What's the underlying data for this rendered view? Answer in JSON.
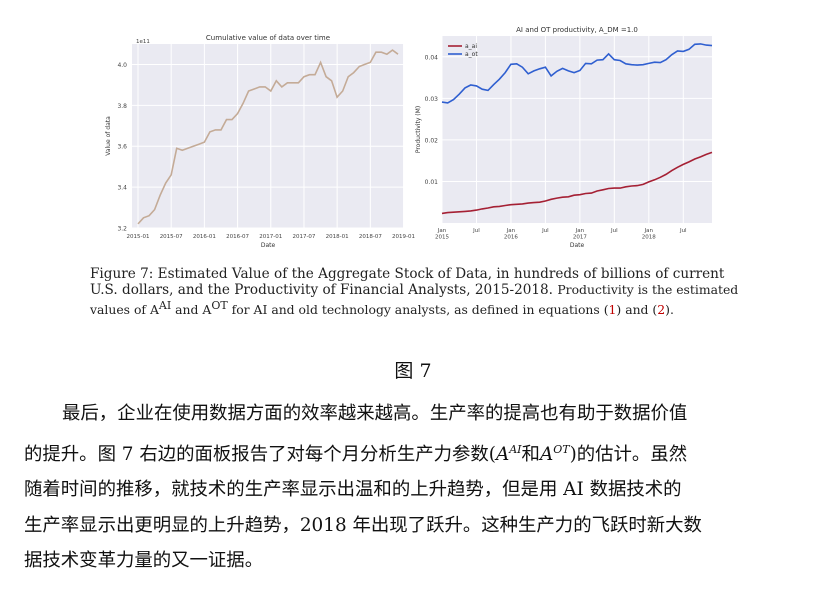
{
  "chart_data": [
    {
      "type": "line",
      "title": "Cumulative value of data over time",
      "xlabel": "Date",
      "ylabel": "Value of data",
      "y_offset_label": "1e11",
      "ylim": [
        3.2,
        4.1
      ],
      "y_ticks": [
        "3.2",
        "3.4",
        "3.6",
        "3.8",
        "4.0"
      ],
      "x_ticks": [
        "2015-01",
        "2015-07",
        "2016-01",
        "2016-07",
        "2017-01",
        "2017-07",
        "2018-01",
        "2018-07",
        "2019-01"
      ],
      "grid": true,
      "color": "#c4ab97",
      "x_month_index": [
        0,
        1,
        2,
        3,
        4,
        5,
        6,
        7,
        8,
        9,
        10,
        11,
        12,
        13,
        14,
        15,
        16,
        17,
        18,
        19,
        20,
        21,
        22,
        23,
        24,
        25,
        26,
        27,
        28,
        29,
        30,
        31,
        32,
        33,
        34,
        35,
        36,
        37,
        38,
        39,
        40,
        41,
        42,
        43,
        44,
        45,
        46,
        47
      ],
      "values": [
        3.22,
        3.25,
        3.26,
        3.29,
        3.36,
        3.42,
        3.46,
        3.59,
        3.58,
        3.59,
        3.6,
        3.61,
        3.62,
        3.67,
        3.68,
        3.68,
        3.73,
        3.73,
        3.76,
        3.81,
        3.87,
        3.88,
        3.89,
        3.89,
        3.87,
        3.92,
        3.89,
        3.91,
        3.91,
        3.91,
        3.94,
        3.95,
        3.95,
        4.01,
        3.94,
        3.92,
        3.84,
        3.87,
        3.94,
        3.96,
        3.99,
        4.0,
        4.01,
        4.06,
        4.06,
        4.05,
        4.07,
        4.05
      ]
    },
    {
      "type": "line",
      "title": "AI and OT productivity, A_DM =1.0",
      "xlabel": "Date",
      "ylabel": "Productivity (M)",
      "ylim": [
        0.0,
        0.045
      ],
      "y_ticks": [
        "0.01",
        "0.02",
        "0.03",
        "0.04"
      ],
      "x_ticks": [
        [
          "Jan",
          "2015"
        ],
        [
          "Jul",
          ""
        ],
        [
          "Jan",
          "2016"
        ],
        [
          "Jul",
          ""
        ],
        [
          "Jan",
          "2017"
        ],
        [
          "Jul",
          ""
        ],
        [
          "Jan",
          "2018"
        ],
        [
          "Jul",
          ""
        ]
      ],
      "grid": true,
      "legend": "top-left",
      "x_month_index": [
        0,
        1,
        2,
        3,
        4,
        5,
        6,
        7,
        8,
        9,
        10,
        11,
        12,
        13,
        14,
        15,
        16,
        17,
        18,
        19,
        20,
        21,
        22,
        23,
        24,
        25,
        26,
        27,
        28,
        29,
        30,
        31,
        32,
        33,
        34,
        35,
        36,
        37,
        38,
        39,
        40,
        41,
        42,
        43,
        44,
        45,
        46,
        47
      ],
      "series": [
        {
          "name": "a_ai",
          "color": "#a52034",
          "values": [
            0.0023,
            0.0025,
            0.0026,
            0.0027,
            0.0028,
            0.0029,
            0.0031,
            0.0034,
            0.0036,
            0.0039,
            0.004,
            0.0042,
            0.0044,
            0.0045,
            0.0046,
            0.0048,
            0.0049,
            0.005,
            0.0053,
            0.0057,
            0.006,
            0.0062,
            0.0063,
            0.0067,
            0.0068,
            0.0071,
            0.0072,
            0.0077,
            0.008,
            0.0083,
            0.0084,
            0.0084,
            0.0087,
            0.0089,
            0.009,
            0.0093,
            0.0099,
            0.0104,
            0.011,
            0.0117,
            0.0126,
            0.0134,
            0.0141,
            0.0147,
            0.0154,
            0.0159,
            0.0165,
            0.017
          ]
        },
        {
          "name": "a_ot",
          "color": "#2f5fd0",
          "values": [
            0.0291,
            0.0289,
            0.0297,
            0.031,
            0.0325,
            0.0332,
            0.033,
            0.0322,
            0.0319,
            0.0333,
            0.0346,
            0.0362,
            0.0382,
            0.0383,
            0.0375,
            0.0359,
            0.0366,
            0.0371,
            0.0375,
            0.0354,
            0.0365,
            0.0372,
            0.0366,
            0.0362,
            0.0367,
            0.0384,
            0.0383,
            0.0392,
            0.0393,
            0.0407,
            0.0393,
            0.0391,
            0.0383,
            0.0381,
            0.038,
            0.0381,
            0.0384,
            0.0387,
            0.0386,
            0.0393,
            0.0405,
            0.0414,
            0.0413,
            0.0418,
            0.043,
            0.0431,
            0.0428,
            0.0427
          ]
        }
      ]
    }
  ],
  "caption": {
    "line1": "Figure 7:  Estimated Value of the Aggregate Stock of Data, in hundreds of billions of current",
    "line2_a": "U.S. dollars, and the Productivity of Financial Analysts, 2015-2018.",
    "line2_b": "Productivity is the estimated",
    "line3_a": "values of A",
    "line3_sup1": "AI",
    "line3_b": " and A",
    "line3_sup2": "OT",
    "line3_c": " for AI and old technology analysts, as defined in equations (",
    "ref1": "1",
    "line3_d": ") and (",
    "ref2": "2",
    "line3_e": ")."
  },
  "figure_label": "图 7",
  "paragraph": {
    "l1": "最后，企业在使用数据方面的效率越来越高。生产率的提高也有助于数据价值",
    "l2_a": "的提升。图 7 右边的面板报告了对每个月分析生产力参数(",
    "l2_m1": "A",
    "l2_s1": "AI",
    "l2_and": "和",
    "l2_m2": "A",
    "l2_s2": "OT",
    "l2_b": ")的估计。虽然",
    "l3": "随着时间的推移，就技术的生产率显示出温和的上升趋势，但是用 AI 数据技术的",
    "l4": "生产率显示出更明显的上升趋势，2018 年出现了跃升。这种生产力的飞跃时新大数",
    "l5": "据技术变革力量的又一证据。"
  }
}
